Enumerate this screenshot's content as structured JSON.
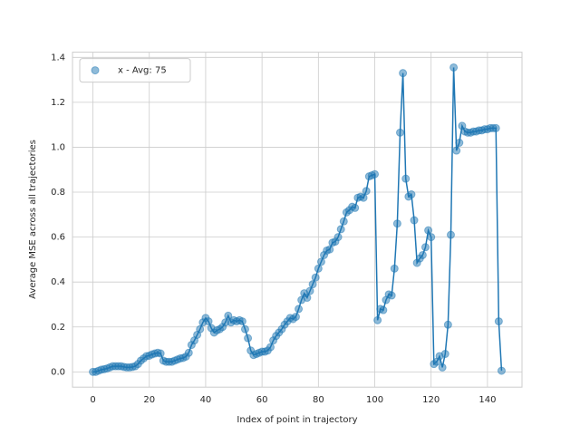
{
  "chart_data": {
    "type": "line",
    "xlabel": "Index of point in trajectory",
    "ylabel": "Average MSE across all trajectories",
    "x": [
      0,
      1,
      2,
      3,
      4,
      5,
      6,
      7,
      8,
      9,
      10,
      11,
      12,
      13,
      14,
      15,
      16,
      17,
      18,
      19,
      20,
      21,
      22,
      23,
      24,
      25,
      26,
      27,
      28,
      29,
      30,
      31,
      32,
      33,
      34,
      35,
      36,
      37,
      38,
      39,
      40,
      41,
      42,
      43,
      44,
      45,
      46,
      47,
      48,
      49,
      50,
      51,
      52,
      53,
      54,
      55,
      56,
      57,
      58,
      59,
      60,
      61,
      62,
      63,
      64,
      65,
      66,
      67,
      68,
      69,
      70,
      71,
      72,
      73,
      74,
      75,
      76,
      77,
      78,
      79,
      80,
      81,
      82,
      83,
      84,
      85,
      86,
      87,
      88,
      89,
      90,
      91,
      92,
      93,
      94,
      95,
      96,
      97,
      98,
      99,
      100,
      101,
      102,
      103,
      104,
      105,
      106,
      107,
      108,
      109,
      110,
      111,
      112,
      113,
      114,
      115,
      116,
      117,
      118,
      119,
      120,
      121,
      122,
      123,
      124,
      125,
      126,
      127,
      128,
      129,
      130,
      131,
      132,
      133,
      134,
      135,
      136,
      137,
      138,
      139,
      140,
      141,
      142,
      143,
      144,
      145
    ],
    "series": [
      {
        "name": "x - Avg: 75",
        "color": "#1f77b4",
        "markers": true,
        "values": [
          0.0,
          0.0,
          0.005,
          0.01,
          0.012,
          0.015,
          0.02,
          0.025,
          0.025,
          0.025,
          0.025,
          0.022,
          0.02,
          0.02,
          0.022,
          0.025,
          0.035,
          0.05,
          0.06,
          0.07,
          0.072,
          0.078,
          0.082,
          0.085,
          0.082,
          0.05,
          0.045,
          0.045,
          0.045,
          0.05,
          0.055,
          0.06,
          0.062,
          0.068,
          0.085,
          0.12,
          0.14,
          0.165,
          0.19,
          0.22,
          0.24,
          0.225,
          0.195,
          0.175,
          0.185,
          0.19,
          0.2,
          0.22,
          0.25,
          0.22,
          0.23,
          0.225,
          0.23,
          0.225,
          0.19,
          0.15,
          0.095,
          0.075,
          0.08,
          0.085,
          0.09,
          0.09,
          0.095,
          0.11,
          0.14,
          0.16,
          0.175,
          0.19,
          0.21,
          0.225,
          0.24,
          0.235,
          0.245,
          0.28,
          0.32,
          0.35,
          0.33,
          0.36,
          0.39,
          0.42,
          0.46,
          0.49,
          0.52,
          0.54,
          0.545,
          0.575,
          0.58,
          0.6,
          0.635,
          0.67,
          0.71,
          0.72,
          0.735,
          0.73,
          0.775,
          0.78,
          0.775,
          0.805,
          0.87,
          0.875,
          0.88,
          0.23,
          0.28,
          0.275,
          0.32,
          0.345,
          0.34,
          0.46,
          0.66,
          1.065,
          1.33,
          0.86,
          0.78,
          0.79,
          0.675,
          0.485,
          0.505,
          0.52,
          0.555,
          0.63,
          0.6,
          0.035,
          0.045,
          0.07,
          0.02,
          0.08,
          0.21,
          0.61,
          1.355,
          0.985,
          1.02,
          1.095,
          1.07,
          1.065,
          1.065,
          1.07,
          1.07,
          1.075,
          1.075,
          1.08,
          1.08,
          1.085,
          1.085,
          1.085,
          0.225,
          0.005
        ]
      }
    ],
    "xlim": [
      -7.25,
      152.25
    ],
    "ylim": [
      -0.068,
      1.423
    ],
    "xticks": [
      0,
      20,
      40,
      60,
      80,
      100,
      120,
      140
    ],
    "yticks": [
      {
        "value": 0,
        "label": "0.0"
      },
      {
        "value": 0.2,
        "label": "0.2"
      },
      {
        "value": 0.4,
        "label": "0.4"
      },
      {
        "value": 0.6,
        "label": "0.6"
      },
      {
        "value": 0.8,
        "label": "0.8"
      },
      {
        "value": 1,
        "label": "1.0"
      },
      {
        "value": 1.2,
        "label": "1.2"
      },
      {
        "value": 1.4,
        "label": "1.4"
      }
    ],
    "grid": true,
    "legend": "upper left"
  }
}
